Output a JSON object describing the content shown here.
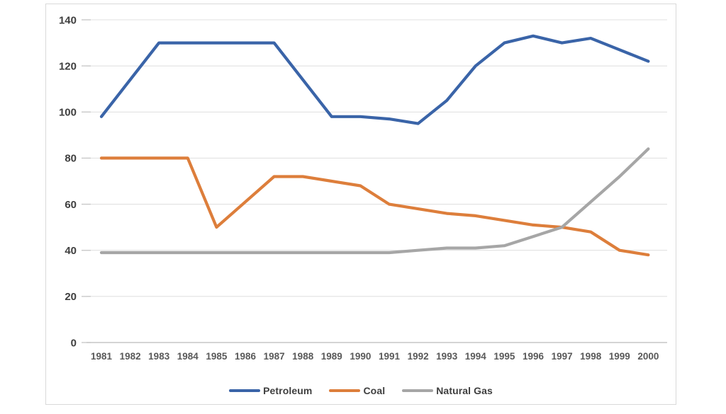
{
  "chart_data": {
    "type": "line",
    "title": "",
    "xlabel": "",
    "ylabel": "",
    "ylim": [
      0,
      140
    ],
    "yticks": [
      0,
      20,
      40,
      60,
      80,
      100,
      120,
      140
    ],
    "grid": "horizontal",
    "legend_position": "bottom",
    "categories": [
      "1981",
      "1982",
      "1983",
      "1984",
      "1985",
      "1986",
      "1987",
      "1988",
      "1989",
      "1990",
      "1991",
      "1992",
      "1993",
      "1994",
      "1995",
      "1996",
      "1997",
      "1998",
      "1999",
      "2000"
    ],
    "series": [
      {
        "name": "Petroleum",
        "color": "#3a64a8",
        "values": [
          98,
          114,
          130,
          130,
          130,
          130,
          130,
          114,
          98,
          98,
          97,
          95,
          105,
          120,
          130,
          133,
          130,
          132,
          127,
          122
        ]
      },
      {
        "name": "Coal",
        "color": "#dd7e3b",
        "values": [
          80,
          80,
          80,
          80,
          50,
          61,
          72,
          72,
          70,
          68,
          60,
          58,
          56,
          55,
          53,
          51,
          50,
          48,
          40,
          38
        ]
      },
      {
        "name": "Natural Gas",
        "color": "#a6a6a6",
        "values": [
          39,
          39,
          39,
          39,
          39,
          39,
          39,
          39,
          39,
          39,
          39,
          40,
          41,
          41,
          42,
          46,
          50,
          61,
          72,
          84
        ]
      }
    ],
    "styles": {
      "grid_color": "#e1e1e1",
      "axis_color": "#c6c6c6",
      "tick_color": "#c9c9c9",
      "ytick_label_color": "#3f3f3f",
      "xtick_label_color": "#595959",
      "frame_border_color": "#d9d9d9",
      "background": "#ffffff"
    }
  }
}
